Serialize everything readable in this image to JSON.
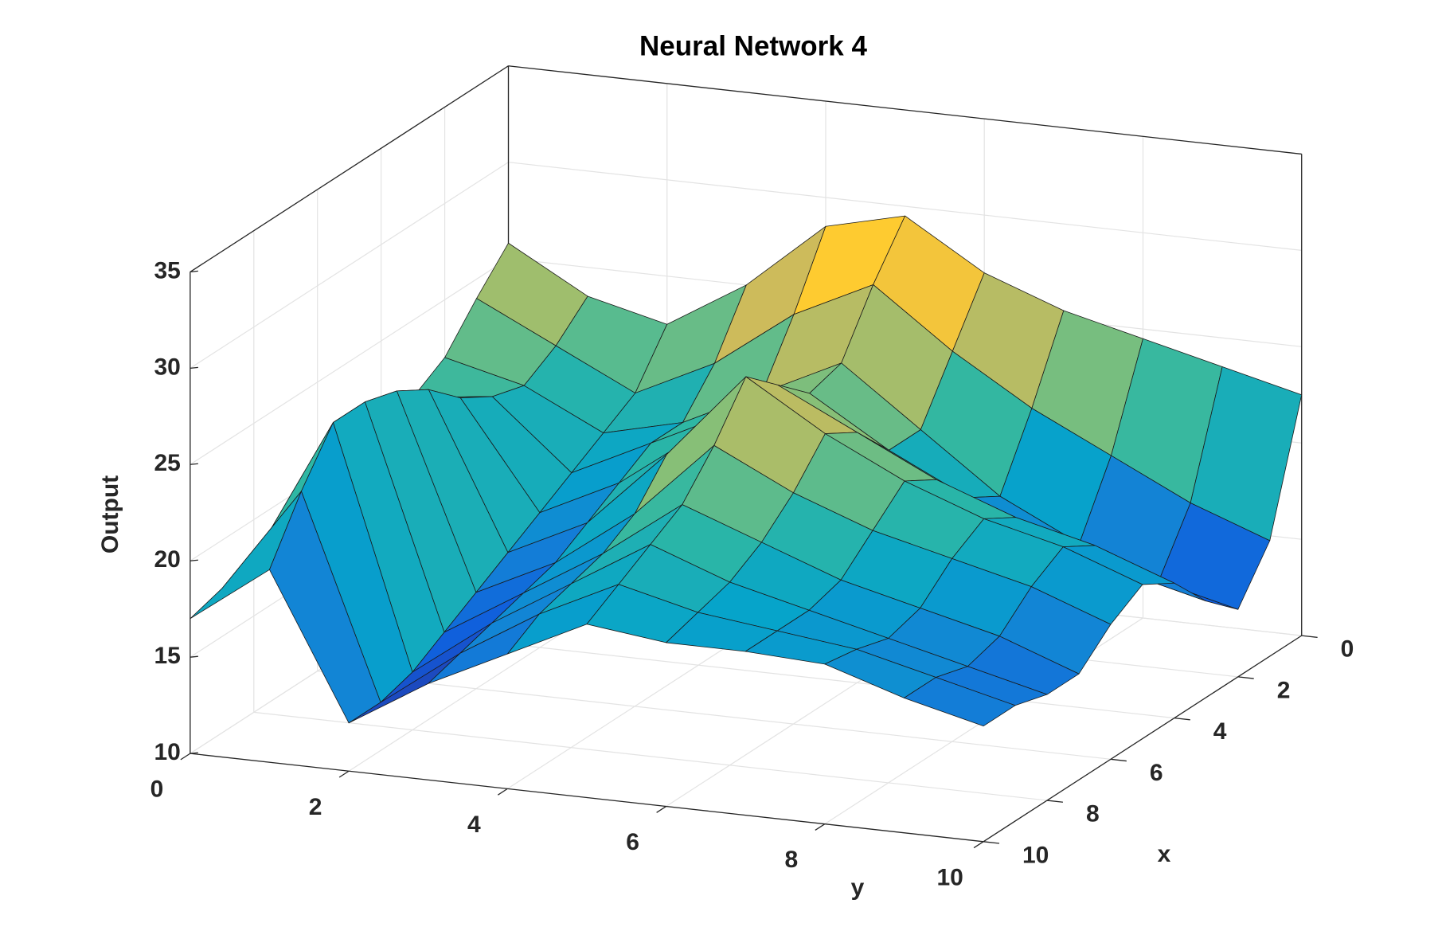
{
  "chart_data": {
    "type": "surface",
    "title": "Neural Network 4",
    "x_label": "x",
    "y_label": "y",
    "z_label": "Output",
    "x": [
      0,
      1,
      2,
      3,
      4,
      5,
      6,
      7,
      8,
      9,
      10
    ],
    "y": [
      0,
      1,
      2,
      3,
      4,
      5,
      6,
      7,
      8,
      9,
      10
    ],
    "z": [
      [
        25.8,
        23.5,
        22.5,
        25.0,
        28.5,
        29.5,
        27.0,
        25.5,
        24.5,
        23.5,
        22.5
      ],
      [
        24.0,
        22.0,
        20.0,
        22.0,
        25.0,
        27.0,
        24.0,
        21.5,
        19.5,
        17.5,
        16.0
      ],
      [
        22.0,
        21.0,
        19.0,
        20.0,
        22.0,
        24.0,
        21.0,
        18.0,
        16.0,
        14.5,
        13.5
      ],
      [
        21.0,
        21.5,
        18.0,
        20.0,
        22.0,
        23.5,
        21.0,
        19.0,
        17.0,
        16.0,
        15.0
      ],
      [
        20.0,
        22.5,
        17.0,
        19.0,
        22.0,
        25.0,
        23.0,
        21.0,
        19.5,
        18.5,
        17.0
      ],
      [
        19.5,
        24.0,
        16.0,
        18.0,
        22.0,
        26.5,
        24.0,
        22.0,
        20.5,
        19.5,
        18.0
      ],
      [
        19.0,
        25.0,
        15.0,
        17.0,
        20.0,
        24.0,
        22.0,
        20.5,
        19.5,
        18.5,
        17.0
      ],
      [
        18.5,
        25.5,
        14.0,
        16.5,
        19.0,
        22.0,
        20.5,
        19.0,
        18.0,
        17.0,
        15.5
      ],
      [
        18.0,
        25.5,
        13.0,
        16.0,
        18.5,
        21.0,
        19.5,
        18.5,
        17.5,
        16.5,
        15.5
      ],
      [
        17.5,
        23.0,
        12.5,
        15.5,
        18.0,
        20.0,
        19.0,
        18.5,
        18.0,
        17.0,
        16.0
      ],
      [
        17.0,
        20.0,
        12.5,
        15.0,
        17.0,
        19.0,
        18.5,
        18.5,
        18.3,
        17.0,
        16.0
      ]
    ],
    "xlim": [
      0,
      10
    ],
    "ylim": [
      0,
      10
    ],
    "zlim": [
      10,
      35
    ],
    "xticks": [
      0,
      2,
      4,
      6,
      8,
      10
    ],
    "yticks": [
      0,
      2,
      4,
      6,
      8,
      10
    ],
    "zticks": [
      10,
      15,
      20,
      25,
      30,
      35
    ],
    "grid": true,
    "colormap": "parula"
  }
}
